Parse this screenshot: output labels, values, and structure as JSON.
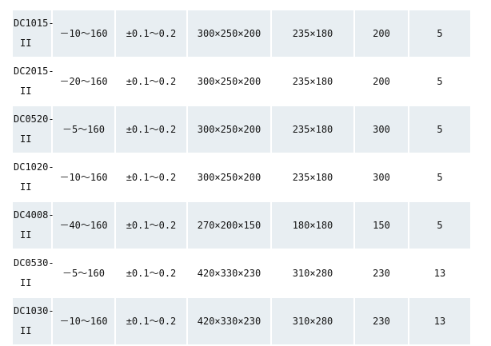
{
  "table": {
    "rows": [
      {
        "model_line1": "DC1015-",
        "model_line2": "II",
        "cells": [
          "－10～160",
          "±0.1～0.2",
          "300×250×200",
          "235×180",
          "200",
          "5"
        ]
      },
      {
        "model_line1": "DC2015-",
        "model_line2": "II",
        "cells": [
          "－20～160",
          "±0.1～0.2",
          "300×250×200",
          "235×180",
          "200",
          "5"
        ]
      },
      {
        "model_line1": "DC0520-",
        "model_line2": "II",
        "cells": [
          "－5～160",
          "±0.1～0.2",
          "300×250×200",
          "235×180",
          "300",
          "5"
        ]
      },
      {
        "model_line1": "DC1020-",
        "model_line2": "II",
        "cells": [
          "－10～160",
          "±0.1～0.2",
          "300×250×200",
          "235×180",
          "300",
          "5"
        ]
      },
      {
        "model_line1": "DC4008-",
        "model_line2": "II",
        "cells": [
          "－40～160",
          "±0.1～0.2",
          "270×200×150",
          "180×180",
          "150",
          "5"
        ]
      },
      {
        "model_line1": "DC0530-",
        "model_line2": "II",
        "cells": [
          "－5～160",
          "±0.1～0.2",
          "420×330×230",
          "310×280",
          "230",
          "13"
        ]
      },
      {
        "model_line1": "DC1030-",
        "model_line2": "II",
        "cells": [
          "－10～160",
          "±0.1～0.2",
          "420×330×230",
          "310×280",
          "230",
          "13"
        ]
      }
    ]
  },
  "colors": {
    "shaded_row": "#e8eef2",
    "text": "#111111"
  }
}
